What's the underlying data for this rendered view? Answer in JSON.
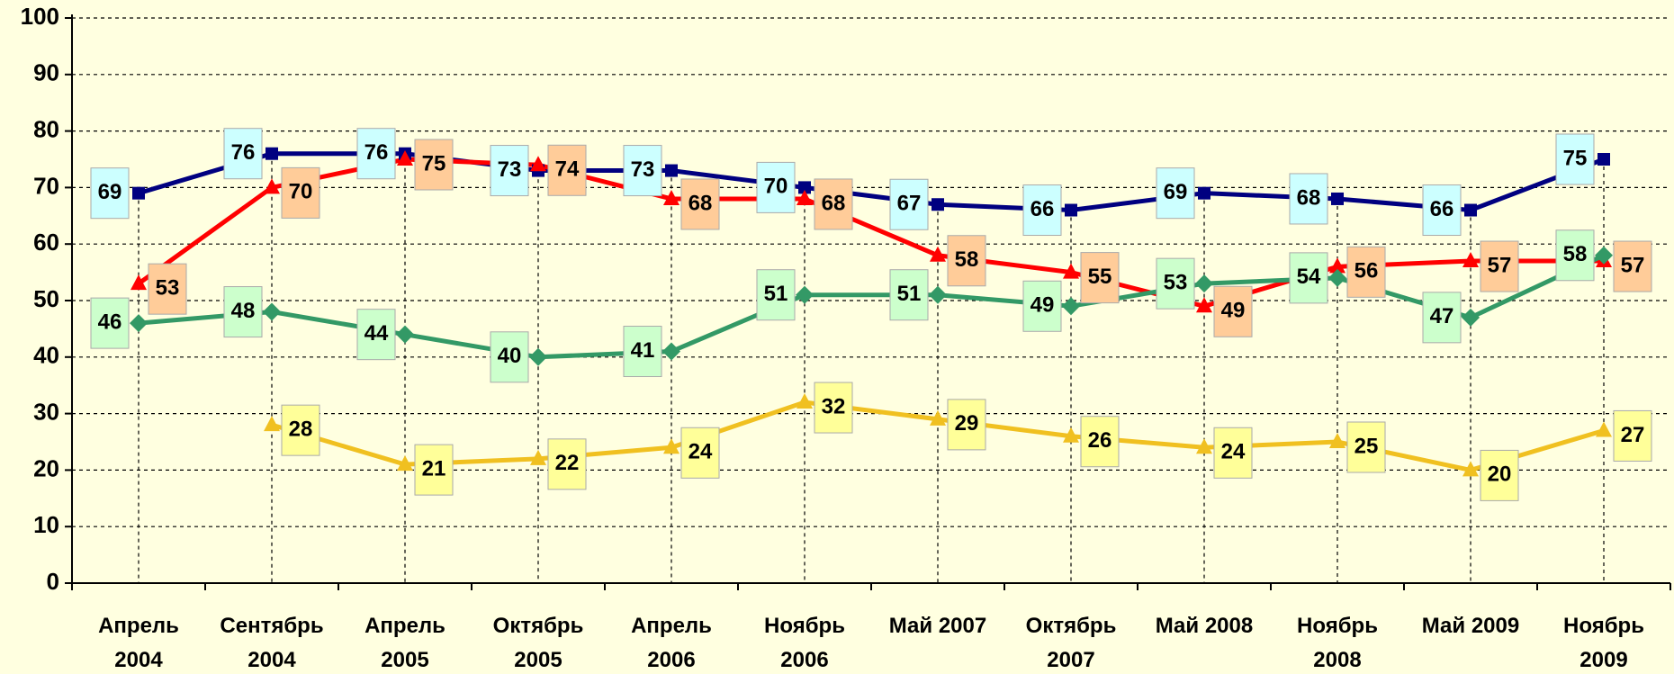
{
  "chart_data": {
    "type": "line",
    "categories": [
      [
        "Апрель",
        "2004"
      ],
      [
        "Сентябрь",
        "2004"
      ],
      [
        "Апрель",
        "2005"
      ],
      [
        "Октябрь",
        "2005"
      ],
      [
        "Апрель",
        "2006"
      ],
      [
        "Ноябрь",
        "2006"
      ],
      [
        "Май 2007"
      ],
      [
        "Октябрь",
        "2007"
      ],
      [
        "Май 2008"
      ],
      [
        "Ноябрь",
        "2008"
      ],
      [
        "Май 2009"
      ],
      [
        "Ноябрь",
        "2009"
      ]
    ],
    "series": [
      {
        "color": "#000080",
        "label_color": "#ccffff",
        "marker": "square",
        "values": [
          69,
          76,
          76,
          73,
          73,
          70,
          67,
          66,
          69,
          68,
          66,
          75
        ]
      },
      {
        "color": "#ff0000",
        "label_color": "#ffcc99",
        "marker": "triangle",
        "values": [
          53,
          70,
          75,
          74,
          68,
          68,
          58,
          55,
          49,
          56,
          57,
          57
        ]
      },
      {
        "color": "#339966",
        "label_color": "#ccffcc",
        "marker": "diamond",
        "values": [
          46,
          48,
          44,
          40,
          41,
          51,
          51,
          49,
          53,
          54,
          47,
          58
        ]
      },
      {
        "color": "#f0c020",
        "label_color": "#ffff99",
        "marker": "triangle",
        "values": [
          null,
          28,
          21,
          22,
          24,
          32,
          29,
          26,
          24,
          25,
          20,
          27
        ]
      }
    ],
    "ylim": [
      0,
      100
    ],
    "yticks": [
      0,
      10,
      20,
      30,
      40,
      50,
      60,
      70,
      80,
      90,
      100
    ],
    "grid": true
  }
}
